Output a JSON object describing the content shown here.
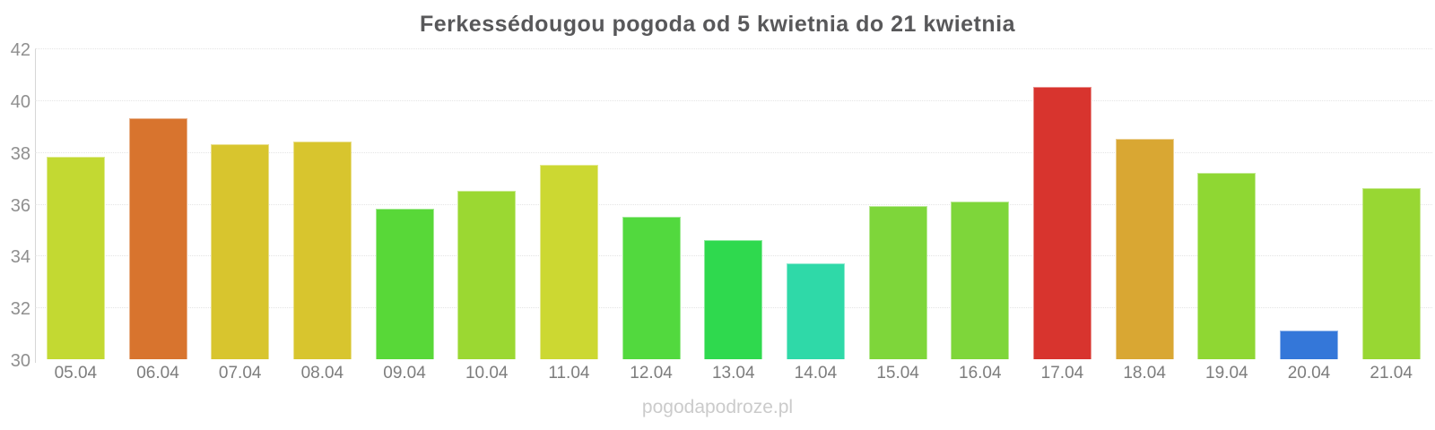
{
  "chart_data": {
    "type": "bar",
    "title": "Ferkessédougou pogoda od 5 kwietnia do 21 kwietnia",
    "categories": [
      "05.04",
      "06.04",
      "07.04",
      "08.04",
      "09.04",
      "10.04",
      "11.04",
      "12.04",
      "13.04",
      "14.04",
      "15.04",
      "16.04",
      "17.04",
      "18.04",
      "19.04",
      "20.04",
      "21.04"
    ],
    "values": [
      37.8,
      39.3,
      38.3,
      38.4,
      35.8,
      36.5,
      37.5,
      35.5,
      34.6,
      33.7,
      35.9,
      36.1,
      40.5,
      38.5,
      37.2,
      31.1,
      36.6
    ],
    "bar_colors": [
      "#c3d932",
      "#d8742e",
      "#d8c52e",
      "#d8c52e",
      "#58d838",
      "#9bd832",
      "#ccd832",
      "#52d93e",
      "#2fd94e",
      "#2fd9a8",
      "#7ed63a",
      "#7ed63a",
      "#d8342e",
      "#d9a733",
      "#8fd733",
      "#3477d9",
      "#98d733"
    ],
    "ylim": [
      30,
      42
    ],
    "yticks": [
      30,
      32,
      34,
      36,
      38,
      40,
      42
    ],
    "grid": true,
    "legend": "none",
    "xlabel": "",
    "ylabel": ""
  },
  "watermark": "pogodapodroze.pl",
  "colors": {
    "background": "#ffffff",
    "title_text": "#58585a",
    "y_label_text": "#8f8f8f",
    "x_label_text": "#7d7d7d",
    "gridline": "#e4e4e4",
    "axis_line": "#d6d6d6",
    "watermark_text": "#cbcbcb"
  }
}
